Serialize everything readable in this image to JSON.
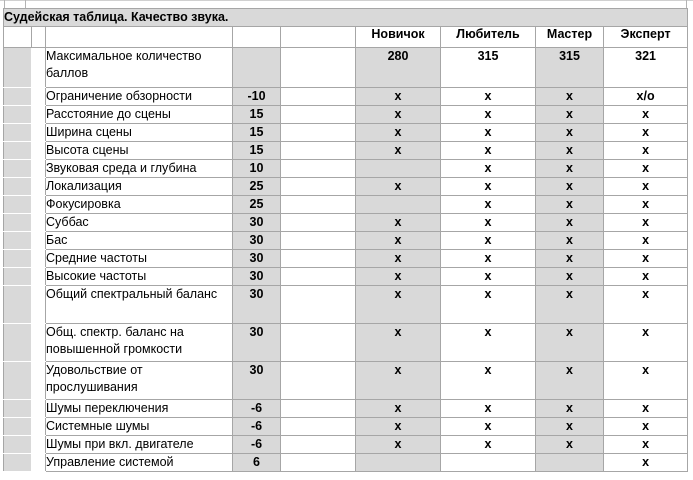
{
  "title": "Судейская таблица. Качество звука.",
  "levels": [
    "Новичок",
    "Любитель",
    "Мастер",
    "Эксперт"
  ],
  "rows": [
    {
      "label": "Максимальное количество баллов",
      "points": "",
      "values": [
        "280",
        "315",
        "315",
        "321"
      ],
      "tall": true,
      "max_row": true
    },
    {
      "label": "Ограничение обзорности",
      "points": "-10",
      "values": [
        "х",
        "х",
        "х",
        "х/о"
      ]
    },
    {
      "label": "Расстояние до сцены",
      "points": "15",
      "values": [
        "х",
        "х",
        "х",
        "х"
      ]
    },
    {
      "label": "Ширина сцены",
      "points": "15",
      "values": [
        "х",
        "х",
        "х",
        "х"
      ]
    },
    {
      "label": "Высота сцены",
      "points": "15",
      "values": [
        "х",
        "х",
        "х",
        "х"
      ]
    },
    {
      "label": "Звуковая среда и глубина",
      "points": "10",
      "values": [
        "",
        "х",
        "х",
        "х"
      ]
    },
    {
      "label": "Локализация",
      "points": "25",
      "values": [
        "х",
        "х",
        "х",
        "х"
      ]
    },
    {
      "label": "Фокусировка",
      "points": "25",
      "values": [
        "",
        "х",
        "х",
        "х"
      ]
    },
    {
      "label": "Суббас",
      "points": "30",
      "values": [
        "х",
        "х",
        "х",
        "х"
      ]
    },
    {
      "label": "Бас",
      "points": "30",
      "values": [
        "х",
        "х",
        "х",
        "х"
      ]
    },
    {
      "label": "Средние частоты",
      "points": "30",
      "values": [
        "х",
        "х",
        "х",
        "х"
      ]
    },
    {
      "label": "Высокие частоты",
      "points": "30",
      "values": [
        "х",
        "х",
        "х",
        "х"
      ]
    },
    {
      "label": "Общий спектральный баланс",
      "points": "30",
      "values": [
        "х",
        "х",
        "х",
        "х"
      ],
      "tall": true
    },
    {
      "label": "Общ. спектр. баланс на повышенной громкости",
      "points": "30",
      "values": [
        "х",
        "х",
        "х",
        "х"
      ],
      "tall": true
    },
    {
      "label": "Удовольствие от прослушивания",
      "points": "30",
      "values": [
        "х",
        "х",
        "х",
        "х"
      ],
      "tall": true
    },
    {
      "label": "Шумы переключения",
      "points": "-6",
      "values": [
        "х",
        "х",
        "х",
        "х"
      ]
    },
    {
      "label": "Системные шумы",
      "points": "-6",
      "values": [
        "х",
        "х",
        "х",
        "х"
      ]
    },
    {
      "label": "Шумы при вкл. двигателе",
      "points": "-6",
      "values": [
        "х",
        "х",
        "х",
        "х"
      ]
    },
    {
      "label": "Управление системой",
      "points": "6",
      "values": [
        "",
        "",
        "",
        "х"
      ]
    }
  ],
  "colors": {
    "cell_fill_gray": "#d9d9d9",
    "border_gray": "#a6a6a6",
    "text": "#000000",
    "background": "#ffffff"
  }
}
